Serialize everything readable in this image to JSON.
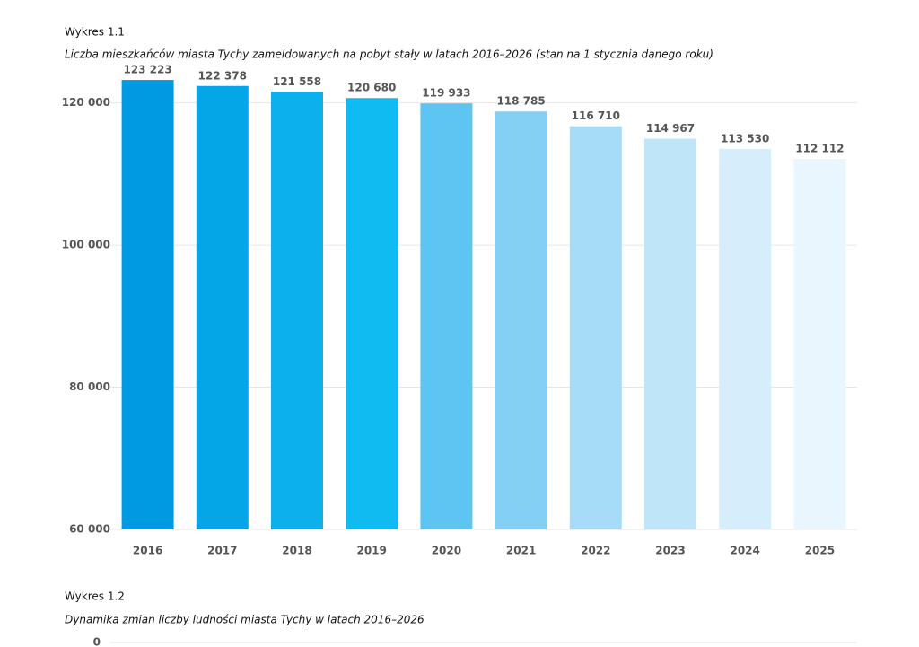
{
  "chart_data": [
    {
      "type": "bar",
      "label": "Wykres 1.1",
      "title": "Liczba mieszkańców miasta Tychy zameldowanych na pobyt stały w latach 2016–2026 (stan na 1 stycznia danego roku)",
      "categories": [
        "2016",
        "2017",
        "2018",
        "2019",
        "2020",
        "2021",
        "2022",
        "2023",
        "2024",
        "2025"
      ],
      "values": [
        123223,
        122378,
        121558,
        120680,
        119933,
        118785,
        116710,
        114967,
        113530,
        112112
      ],
      "value_labels": [
        "123 223",
        "122 378",
        "121 558",
        "120 680",
        "119 933",
        "118 785",
        "116 710",
        "114 967",
        "113 530",
        "112 112"
      ],
      "colors": [
        "#009ae2",
        "#05a6e8",
        "#0bb0ec",
        "#0fbbf0",
        "#5ec5f2",
        "#84cff4",
        "#a6dcf7",
        "#bfe5f9",
        "#d6eefb",
        "#e9f6fd"
      ],
      "ylim": [
        60000,
        125000
      ],
      "yticks": [
        {
          "value": 60000,
          "label": "60 000"
        },
        {
          "value": 80000,
          "label": "80 000"
        },
        {
          "value": 100000,
          "label": "100 000"
        },
        {
          "value": 120000,
          "label": "120 000"
        }
      ],
      "grid": true
    },
    {
      "type": "bar",
      "label": "Wykres  1.2",
      "title": "Dynamika zmian liczby ludności miasta Tychy w latach 2016–2026",
      "yticks": [
        0
      ],
      "grid": true
    }
  ]
}
